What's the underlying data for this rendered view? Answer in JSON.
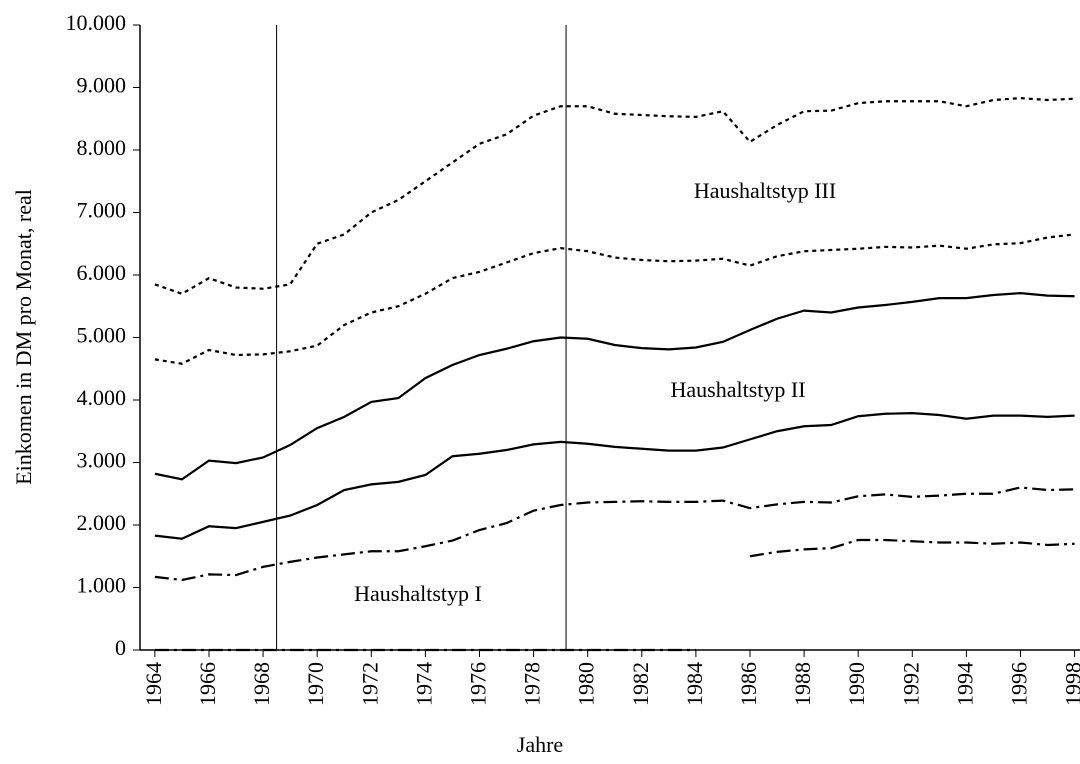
{
  "chart_data": {
    "type": "line",
    "ylabel": "Einkomen in DM pro Monat, real",
    "xlabel": "Jahre",
    "x": [
      1964,
      1965,
      1966,
      1967,
      1968,
      1969,
      1970,
      1971,
      1972,
      1973,
      1974,
      1975,
      1976,
      1977,
      1978,
      1979,
      1980,
      1981,
      1982,
      1983,
      1984,
      1985,
      1986,
      1987,
      1988,
      1989,
      1990,
      1991,
      1992,
      1993,
      1994,
      1995,
      1996,
      1997,
      1998
    ],
    "xlim": [
      1963.45,
      1998.2
    ],
    "xticks": [
      1964,
      1966,
      1968,
      1970,
      1972,
      1974,
      1976,
      1978,
      1980,
      1982,
      1984,
      1986,
      1988,
      1990,
      1992,
      1994,
      1996,
      1998
    ],
    "ylim": [
      0,
      10000
    ],
    "yticks": [
      0,
      {
        "value": 1000,
        "label": "1.000"
      },
      {
        "value": 2000,
        "label": "2.000"
      },
      {
        "value": 3000,
        "label": "3.000"
      },
      {
        "value": 4000,
        "label": "4.000"
      },
      {
        "value": 5000,
        "label": "5.000"
      },
      {
        "value": 6000,
        "label": "6.000"
      },
      {
        "value": 7000,
        "label": "7.000"
      },
      {
        "value": 8000,
        "label": "8.000"
      },
      {
        "value": 9000,
        "label": "9.000"
      },
      {
        "value": 10000,
        "label": "10.000"
      }
    ],
    "vlines": [
      1968.5,
      1979.2
    ],
    "annotations": [
      "Haushaltstyp III",
      "Haushaltstyp II",
      "Haushaltstyp I"
    ],
    "series": [
      {
        "color": "#000",
        "dash": "dotted",
        "values": [
          5850,
          5700,
          5950,
          5800,
          5780,
          5850,
          6500,
          6650,
          7000,
          7200,
          7500,
          7800,
          8100,
          8250,
          8550,
          8700,
          8700,
          8580,
          8560,
          8540,
          8530,
          8620,
          8130,
          8400,
          8620,
          8630,
          8750,
          8780,
          8780,
          8780,
          8700,
          8800,
          8830,
          8800,
          8820
        ]
      },
      {
        "color": "#000",
        "dash": "dotted",
        "values": [
          4650,
          4580,
          4800,
          4720,
          4730,
          4780,
          4870,
          5200,
          5400,
          5500,
          5700,
          5950,
          6050,
          6200,
          6350,
          6430,
          6380,
          6280,
          6240,
          6220,
          6230,
          6260,
          6150,
          6300,
          6380,
          6400,
          6420,
          6450,
          6440,
          6470,
          6420,
          6490,
          6510,
          6600,
          6650
        ]
      },
      {
        "color": "#000",
        "dash": "solid",
        "values": [
          2820,
          2730,
          3030,
          2990,
          3080,
          3280,
          3550,
          3730,
          3970,
          4030,
          4350,
          4560,
          4720,
          4820,
          4940,
          5000,
          4980,
          4880,
          4830,
          4810,
          4840,
          4930,
          5120,
          5300,
          5430,
          5400,
          5480,
          5520,
          5570,
          5630,
          5630,
          5680,
          5710,
          5670,
          5660
        ]
      },
      {
        "color": "#000",
        "dash": "solid",
        "values": [
          1830,
          1780,
          1980,
          1950,
          2050,
          2150,
          2320,
          2560,
          2650,
          2690,
          2800,
          3100,
          3140,
          3200,
          3290,
          3330,
          3300,
          3250,
          3220,
          3190,
          3190,
          3240,
          3370,
          3500,
          3580,
          3600,
          3740,
          3780,
          3790,
          3760,
          3700,
          3750,
          3750,
          3730,
          3750
        ]
      },
      {
        "color": "#000",
        "dash": "dashdot",
        "values": [
          1170,
          1120,
          1210,
          1200,
          1330,
          1410,
          1480,
          1530,
          1580,
          1580,
          1660,
          1750,
          1920,
          2030,
          2230,
          2320,
          2360,
          2370,
          2380,
          2370,
          2370,
          2390,
          2270,
          2330,
          2370,
          2360,
          2460,
          2490,
          2450,
          2470,
          2500,
          2500,
          2600,
          2560,
          2570
        ]
      },
      {
        "color": "#000",
        "dash": "dashdot",
        "values": [
          null,
          null,
          null,
          null,
          null,
          null,
          null,
          null,
          null,
          null,
          null,
          null,
          null,
          null,
          null,
          null,
          null,
          null,
          null,
          null,
          null,
          null,
          1500,
          1570,
          1610,
          1630,
          1760,
          1760,
          1740,
          1720,
          1720,
          1700,
          1720,
          1680,
          1700
        ]
      },
      {
        "color": "#000",
        "dash": "dashdot",
        "values": [
          0,
          0,
          0,
          0,
          0,
          0,
          0,
          0,
          0,
          0,
          0,
          0,
          0,
          0,
          0,
          0,
          0,
          0,
          0,
          0,
          0,
          null,
          null,
          null,
          null,
          null,
          null,
          null,
          null,
          null,
          null,
          null,
          null,
          null,
          null
        ]
      }
    ]
  }
}
